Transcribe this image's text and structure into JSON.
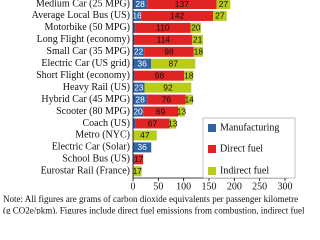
{
  "chart_data": {
    "type": "stacked-bar-horizontal",
    "categories": [
      "Medium Car (25 MPG)",
      "Average Local Bus (US)",
      "Motorbike (50 MPG)",
      "Long Flight (economy)",
      "Small Car (35 MPG)",
      "Electric Car (US grid)",
      "Short Flight (economy)",
      "Heavy Rail (US)",
      "Hybrid Car (45 MPG)",
      "Scooter (80 MPG)",
      "Coach (US)",
      "Metro (NYC)",
      "Electric Car (Solar)",
      "School Bus (US)",
      "Eurostar Rail (France)"
    ],
    "series": [
      {
        "name": "Manufacturing",
        "color": "#2e64a6",
        "values": [
          28,
          16,
          4,
          3,
          22,
          36,
          3,
          23,
          28,
          20,
          5,
          0,
          36,
          3,
          0
        ],
        "value_labels": [
          "28",
          "16",
          null,
          null,
          "22",
          "36",
          null,
          "23",
          "28",
          "20",
          null,
          null,
          "36",
          null,
          null
        ]
      },
      {
        "name": "Direct fuel",
        "color": "#e02424",
        "values": [
          137,
          142,
          110,
          114,
          98,
          0,
          98,
          0,
          76,
          69,
          67,
          0,
          0,
          17,
          0
        ],
        "value_labels": [
          "137",
          "142",
          "110",
          "114",
          "98",
          null,
          "98",
          null,
          "76",
          "69",
          "67",
          null,
          null,
          "17",
          null
        ]
      },
      {
        "name": "Indirect fuel",
        "color": "#b8cc1c",
        "values": [
          27,
          27,
          20,
          21,
          18,
          87,
          18,
          92,
          14,
          13,
          13,
          47,
          0,
          0,
          17
        ],
        "value_labels": [
          "27",
          "27",
          "20",
          "21",
          "18",
          "87",
          "18",
          "92",
          "14",
          "13",
          "13",
          "47",
          null,
          null,
          "17"
        ]
      }
    ],
    "xlim": [
      0,
      300
    ],
    "xticks": [
      0,
      50,
      100,
      150,
      200,
      250,
      300
    ],
    "legend": "lower right",
    "note": [
      "Note:  All figures are grams of carbon dioxide equivalents per passenger kilometre",
      "(g CO2e/pkm). Figures include direct fuel emissions from combustion, indirect fuel"
    ]
  }
}
